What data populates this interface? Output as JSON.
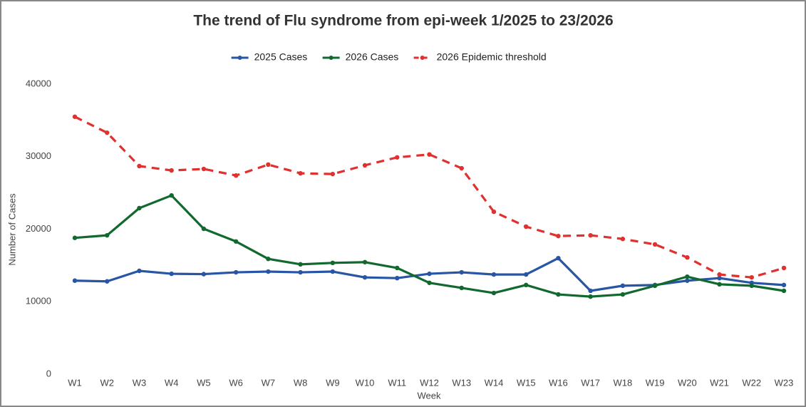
{
  "chart_data": {
    "type": "line",
    "title": "The trend of Flu syndrome from epi-week 1/2025 to 23/2026",
    "x_label": "Week",
    "y_label": "Number of Cases",
    "categories": [
      "W1",
      "W2",
      "W3",
      "W4",
      "W5",
      "W6",
      "W7",
      "W8",
      "W9",
      "W10",
      "W11",
      "W12",
      "W13",
      "W14",
      "W15",
      "W16",
      "W17",
      "W18",
      "W19",
      "W20",
      "W21",
      "W22",
      "W23"
    ],
    "series": [
      {
        "name": "2025 Cases",
        "color": "#2855a4",
        "dash": false,
        "values": [
          12900,
          12800,
          14250,
          13850,
          13800,
          14050,
          14150,
          14050,
          14150,
          13350,
          13250,
          13850,
          14050,
          13750,
          13750,
          16000,
          11500,
          12200,
          12300,
          12900,
          13250,
          12600,
          12300
        ]
      },
      {
        "name": "2026 Cases",
        "color": "#12692f",
        "dash": false,
        "values": [
          18800,
          19150,
          22900,
          24650,
          20050,
          18300,
          15900,
          15150,
          15350,
          15450,
          14650,
          12600,
          11900,
          11200,
          12300,
          11000,
          10700,
          11000,
          12200,
          13450,
          12400,
          12200,
          11500
        ]
      },
      {
        "name": "2026 Epidemic threshold",
        "color": "#e03030",
        "dash": true,
        "values": [
          35500,
          33300,
          28700,
          28100,
          28300,
          27400,
          28900,
          27700,
          27600,
          28800,
          29900,
          30300,
          28400,
          22400,
          20350,
          19050,
          19150,
          18650,
          17900,
          16100,
          13750,
          13350,
          14650
        ]
      }
    ],
    "ylim": [
      0,
      40000
    ],
    "yticks": [
      0,
      10000,
      20000,
      30000,
      40000
    ],
    "grid": false,
    "legend": "top"
  }
}
